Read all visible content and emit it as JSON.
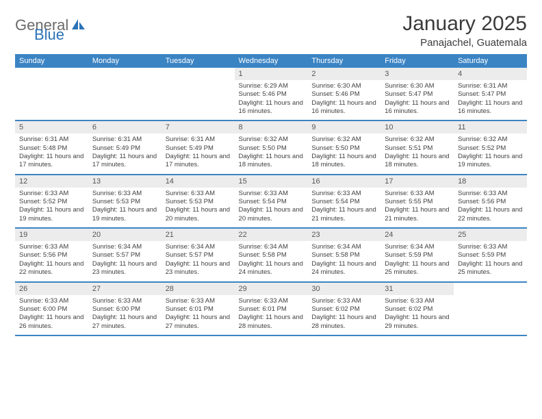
{
  "logo": {
    "general": "General",
    "blue": "Blue"
  },
  "title": "January 2025",
  "location": "Panajachel, Guatemala",
  "colors": {
    "header_bg": "#3b84c4",
    "header_text": "#ffffff",
    "daynum_bg": "#ececec",
    "daynum_text": "#555555",
    "body_text": "#404040",
    "rule": "#3b84c4",
    "logo_gray": "#6a6a6a",
    "logo_blue": "#2a73b8"
  },
  "typography": {
    "title_fontsize": 30,
    "location_fontsize": 15,
    "header_fontsize": 11,
    "daynum_fontsize": 11,
    "body_fontsize": 9.5
  },
  "day_headers": [
    "Sunday",
    "Monday",
    "Tuesday",
    "Wednesday",
    "Thursday",
    "Friday",
    "Saturday"
  ],
  "weeks": [
    [
      {
        "n": "",
        "sr": "",
        "ss": "",
        "dl": "",
        "empty": true
      },
      {
        "n": "",
        "sr": "",
        "ss": "",
        "dl": "",
        "empty": true
      },
      {
        "n": "",
        "sr": "",
        "ss": "",
        "dl": "",
        "empty": true
      },
      {
        "n": "1",
        "sr": "Sunrise: 6:29 AM",
        "ss": "Sunset: 5:46 PM",
        "dl": "Daylight: 11 hours and 16 minutes."
      },
      {
        "n": "2",
        "sr": "Sunrise: 6:30 AM",
        "ss": "Sunset: 5:46 PM",
        "dl": "Daylight: 11 hours and 16 minutes."
      },
      {
        "n": "3",
        "sr": "Sunrise: 6:30 AM",
        "ss": "Sunset: 5:47 PM",
        "dl": "Daylight: 11 hours and 16 minutes."
      },
      {
        "n": "4",
        "sr": "Sunrise: 6:31 AM",
        "ss": "Sunset: 5:47 PM",
        "dl": "Daylight: 11 hours and 16 minutes."
      }
    ],
    [
      {
        "n": "5",
        "sr": "Sunrise: 6:31 AM",
        "ss": "Sunset: 5:48 PM",
        "dl": "Daylight: 11 hours and 17 minutes."
      },
      {
        "n": "6",
        "sr": "Sunrise: 6:31 AM",
        "ss": "Sunset: 5:49 PM",
        "dl": "Daylight: 11 hours and 17 minutes."
      },
      {
        "n": "7",
        "sr": "Sunrise: 6:31 AM",
        "ss": "Sunset: 5:49 PM",
        "dl": "Daylight: 11 hours and 17 minutes."
      },
      {
        "n": "8",
        "sr": "Sunrise: 6:32 AM",
        "ss": "Sunset: 5:50 PM",
        "dl": "Daylight: 11 hours and 18 minutes."
      },
      {
        "n": "9",
        "sr": "Sunrise: 6:32 AM",
        "ss": "Sunset: 5:50 PM",
        "dl": "Daylight: 11 hours and 18 minutes."
      },
      {
        "n": "10",
        "sr": "Sunrise: 6:32 AM",
        "ss": "Sunset: 5:51 PM",
        "dl": "Daylight: 11 hours and 18 minutes."
      },
      {
        "n": "11",
        "sr": "Sunrise: 6:32 AM",
        "ss": "Sunset: 5:52 PM",
        "dl": "Daylight: 11 hours and 19 minutes."
      }
    ],
    [
      {
        "n": "12",
        "sr": "Sunrise: 6:33 AM",
        "ss": "Sunset: 5:52 PM",
        "dl": "Daylight: 11 hours and 19 minutes."
      },
      {
        "n": "13",
        "sr": "Sunrise: 6:33 AM",
        "ss": "Sunset: 5:53 PM",
        "dl": "Daylight: 11 hours and 19 minutes."
      },
      {
        "n": "14",
        "sr": "Sunrise: 6:33 AM",
        "ss": "Sunset: 5:53 PM",
        "dl": "Daylight: 11 hours and 20 minutes."
      },
      {
        "n": "15",
        "sr": "Sunrise: 6:33 AM",
        "ss": "Sunset: 5:54 PM",
        "dl": "Daylight: 11 hours and 20 minutes."
      },
      {
        "n": "16",
        "sr": "Sunrise: 6:33 AM",
        "ss": "Sunset: 5:54 PM",
        "dl": "Daylight: 11 hours and 21 minutes."
      },
      {
        "n": "17",
        "sr": "Sunrise: 6:33 AM",
        "ss": "Sunset: 5:55 PM",
        "dl": "Daylight: 11 hours and 21 minutes."
      },
      {
        "n": "18",
        "sr": "Sunrise: 6:33 AM",
        "ss": "Sunset: 5:56 PM",
        "dl": "Daylight: 11 hours and 22 minutes."
      }
    ],
    [
      {
        "n": "19",
        "sr": "Sunrise: 6:33 AM",
        "ss": "Sunset: 5:56 PM",
        "dl": "Daylight: 11 hours and 22 minutes."
      },
      {
        "n": "20",
        "sr": "Sunrise: 6:34 AM",
        "ss": "Sunset: 5:57 PM",
        "dl": "Daylight: 11 hours and 23 minutes."
      },
      {
        "n": "21",
        "sr": "Sunrise: 6:34 AM",
        "ss": "Sunset: 5:57 PM",
        "dl": "Daylight: 11 hours and 23 minutes."
      },
      {
        "n": "22",
        "sr": "Sunrise: 6:34 AM",
        "ss": "Sunset: 5:58 PM",
        "dl": "Daylight: 11 hours and 24 minutes."
      },
      {
        "n": "23",
        "sr": "Sunrise: 6:34 AM",
        "ss": "Sunset: 5:58 PM",
        "dl": "Daylight: 11 hours and 24 minutes."
      },
      {
        "n": "24",
        "sr": "Sunrise: 6:34 AM",
        "ss": "Sunset: 5:59 PM",
        "dl": "Daylight: 11 hours and 25 minutes."
      },
      {
        "n": "25",
        "sr": "Sunrise: 6:33 AM",
        "ss": "Sunset: 5:59 PM",
        "dl": "Daylight: 11 hours and 25 minutes."
      }
    ],
    [
      {
        "n": "26",
        "sr": "Sunrise: 6:33 AM",
        "ss": "Sunset: 6:00 PM",
        "dl": "Daylight: 11 hours and 26 minutes."
      },
      {
        "n": "27",
        "sr": "Sunrise: 6:33 AM",
        "ss": "Sunset: 6:00 PM",
        "dl": "Daylight: 11 hours and 27 minutes."
      },
      {
        "n": "28",
        "sr": "Sunrise: 6:33 AM",
        "ss": "Sunset: 6:01 PM",
        "dl": "Daylight: 11 hours and 27 minutes."
      },
      {
        "n": "29",
        "sr": "Sunrise: 6:33 AM",
        "ss": "Sunset: 6:01 PM",
        "dl": "Daylight: 11 hours and 28 minutes."
      },
      {
        "n": "30",
        "sr": "Sunrise: 6:33 AM",
        "ss": "Sunset: 6:02 PM",
        "dl": "Daylight: 11 hours and 28 minutes."
      },
      {
        "n": "31",
        "sr": "Sunrise: 6:33 AM",
        "ss": "Sunset: 6:02 PM",
        "dl": "Daylight: 11 hours and 29 minutes."
      },
      {
        "n": "",
        "sr": "",
        "ss": "",
        "dl": "",
        "empty": true
      }
    ]
  ]
}
